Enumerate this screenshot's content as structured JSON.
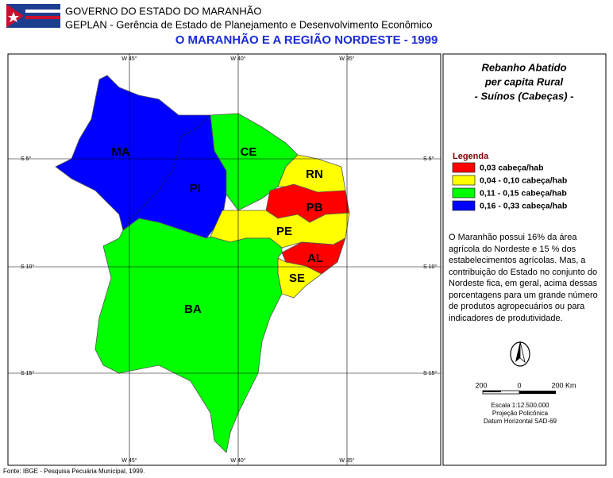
{
  "header": {
    "line1": "GOVERNO DO ESTADO DO MARANHÃO",
    "line2": "GEPLAN - Gerência de Estado de Planejamento e Desenvolvimento Econômico",
    "title": "O MARANHÃO E A REGIÃO NORDESTE - 1999"
  },
  "grid": {
    "longitudes": [
      "W 45°",
      "W 40°",
      "W 35°"
    ],
    "latitudes": [
      "S 5°",
      "S 10°",
      "S 15°"
    ]
  },
  "states": [
    "MA",
    "PI",
    "CE",
    "RN",
    "PB",
    "PE",
    "AL",
    "SE",
    "BA"
  ],
  "panel": {
    "title": [
      "Rebanho Abatido",
      "per capita Rural",
      "- Suínos (Cabeças) -"
    ],
    "legend_title": "Legenda",
    "legend": [
      {
        "label": "0,03 cabeça/hab",
        "color": "#ff0000"
      },
      {
        "label": "0,04 - 0,10 cabeça/hab",
        "color": "#ffff00"
      },
      {
        "label": "0,11 - 0,15 cabeça/hab",
        "color": "#00ff00"
      },
      {
        "label": "0,16 - 0,33 cabeça/hab",
        "color": "#0000ff"
      }
    ],
    "description": "O Maranhão possui 16% da área agrícola do Nordeste e 15 % dos estabelecimentos agrícolas. Mas, a contribuição do Estado no conjunto do Nordeste fica, em geral, acima dessas porcentagens para um grande número de produtos agropecuários ou para indicadores de produtividade.",
    "scale_labels": [
      "200",
      "0",
      "200 Km"
    ],
    "map_info": [
      "Escala 1:12.500.000",
      "Projeção Policônica",
      "Datum Horizontal SAD-69"
    ]
  },
  "source": "Fonte: IBGE - Pesquisa Pecuária Municipal, 1999."
}
